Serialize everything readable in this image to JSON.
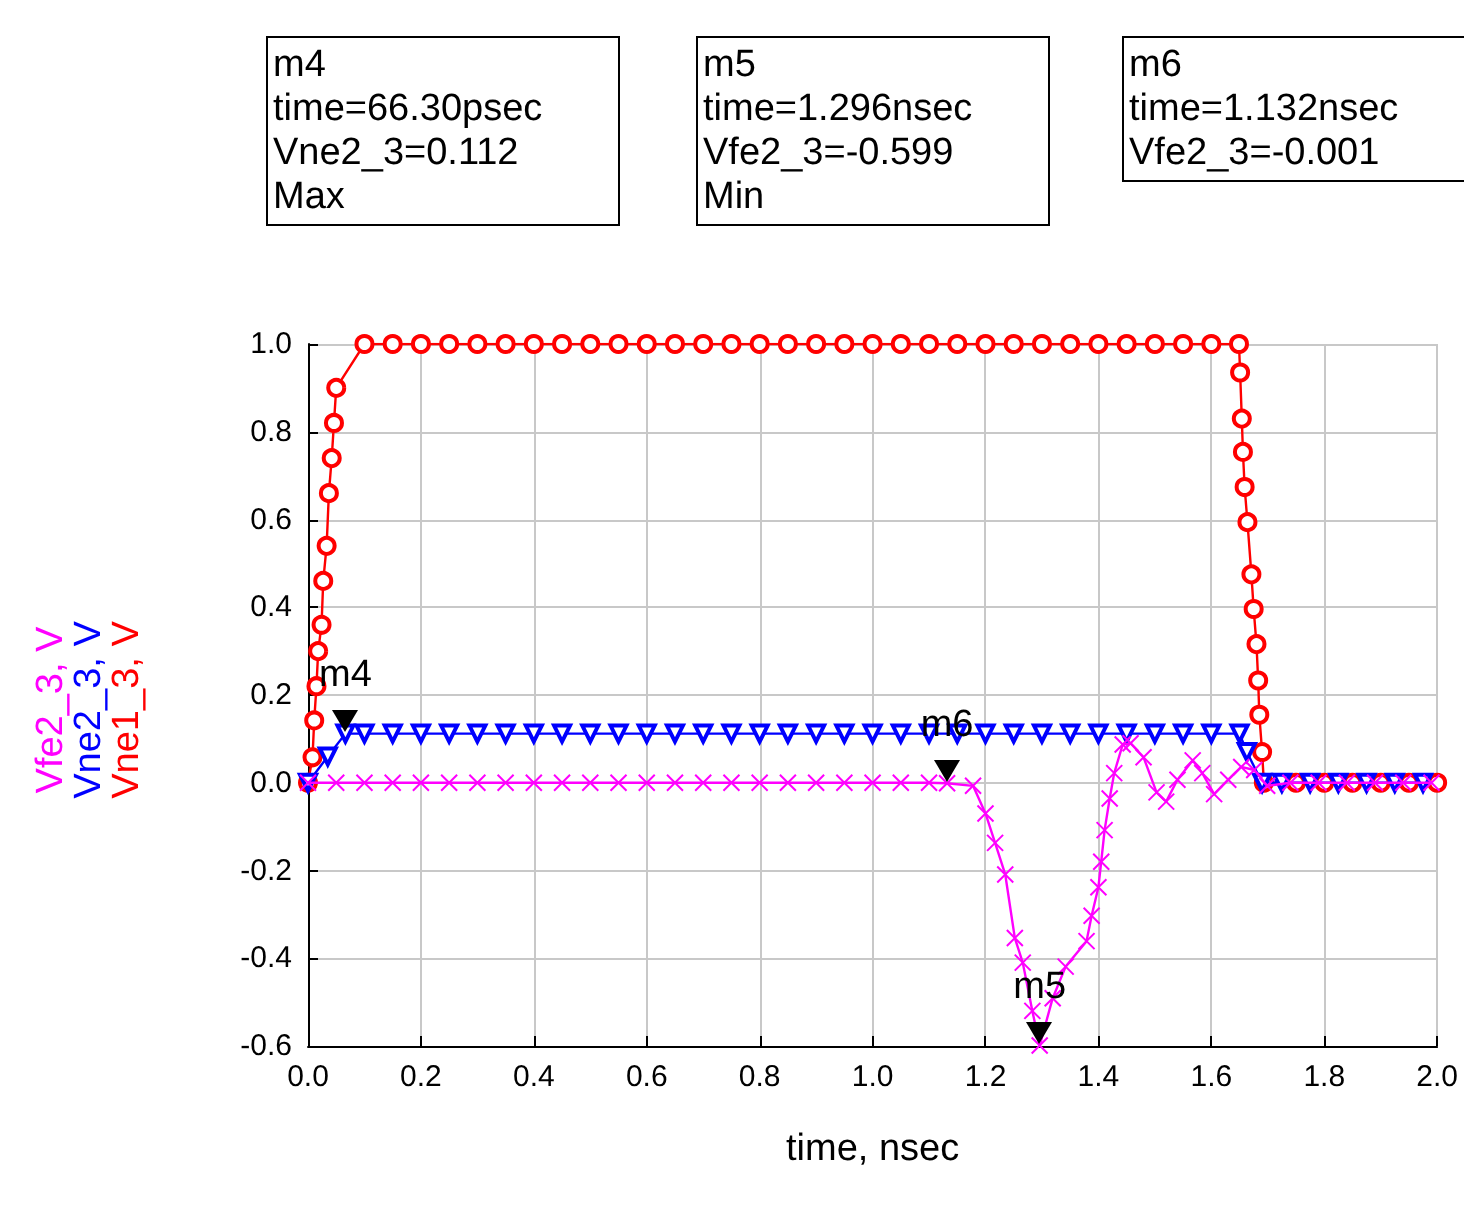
{
  "chart_data": {
    "type": "line",
    "xlabel": "time, nsec",
    "xlim": [
      0,
      2
    ],
    "xticks": [
      {
        "value": 0,
        "label": "0.0"
      },
      {
        "value": 0.2,
        "label": "0.2"
      },
      {
        "value": 0.4,
        "label": "0.4"
      },
      {
        "value": 0.6,
        "label": "0.6"
      },
      {
        "value": 0.8,
        "label": "0.8"
      },
      {
        "value": 1,
        "label": "1.0"
      },
      {
        "value": 1.2,
        "label": "1.2"
      },
      {
        "value": 1.4,
        "label": "1.4"
      },
      {
        "value": 1.6,
        "label": "1.6"
      },
      {
        "value": 1.8,
        "label": "1.8"
      },
      {
        "value": 2,
        "label": "2.0"
      }
    ],
    "ylim": [
      -0.6,
      1
    ],
    "yticks": [
      {
        "value": -0.6,
        "label": "-0.6"
      },
      {
        "value": -0.4,
        "label": "-0.4"
      },
      {
        "value": -0.2,
        "label": "-0.2"
      },
      {
        "value": 0,
        "label": "0.0"
      },
      {
        "value": 0.2,
        "label": "0.2"
      },
      {
        "value": 0.4,
        "label": "0.4"
      },
      {
        "value": 0.6,
        "label": "0.6"
      },
      {
        "value": 0.8,
        "label": "0.8"
      },
      {
        "value": 1,
        "label": "1.0"
      }
    ],
    "grid": true,
    "legend": "left",
    "line_style": "solid",
    "series": [
      {
        "name": "Vne1_3, V",
        "color": "#ff0000",
        "marker": "circle",
        "x": [
          0,
          0.008,
          0.011,
          0.015,
          0.018,
          0.024,
          0.027,
          0.033,
          0.037,
          0.042,
          0.046,
          0.05,
          0.1,
          0.15,
          0.2,
          0.25,
          0.3,
          0.35,
          0.4,
          0.45,
          0.5,
          0.55,
          0.6,
          0.65,
          0.7,
          0.75,
          0.8,
          0.85,
          0.9,
          0.95,
          1,
          1.05,
          1.1,
          1.15,
          1.2,
          1.25,
          1.3,
          1.35,
          1.4,
          1.45,
          1.5,
          1.55,
          1.6,
          1.649,
          1.651,
          1.654,
          1.656,
          1.659,
          1.664,
          1.671,
          1.675,
          1.68,
          1.683,
          1.685,
          1.69,
          1.693,
          1.75,
          1.8,
          1.85,
          1.9,
          1.95,
          2
        ],
        "values": [
          0,
          0.058,
          0.142,
          0.22,
          0.3,
          0.36,
          0.46,
          0.54,
          0.66,
          0.74,
          0.82,
          0.9,
          1,
          1,
          1,
          1,
          1,
          1,
          1,
          1,
          1,
          1,
          1,
          1,
          1,
          1,
          1,
          1,
          1,
          1,
          1,
          1,
          1,
          1,
          1,
          1,
          1,
          1,
          1,
          1,
          1,
          1,
          1,
          1,
          0.935,
          0.83,
          0.754,
          0.674,
          0.594,
          0.475,
          0.396,
          0.316,
          0.233,
          0.155,
          0.07,
          0,
          0,
          0,
          0,
          0,
          0,
          0
        ]
      },
      {
        "name": "Vne2_3, V",
        "color": "#0000ff",
        "marker": "triangle",
        "x": [
          0,
          0.035,
          0.0663,
          0.1,
          0.15,
          0.2,
          0.25,
          0.3,
          0.35,
          0.4,
          0.45,
          0.5,
          0.55,
          0.6,
          0.65,
          0.7,
          0.75,
          0.8,
          0.85,
          0.9,
          0.95,
          1,
          1.05,
          1.1,
          1.15,
          1.2,
          1.25,
          1.3,
          1.35,
          1.4,
          1.45,
          1.5,
          1.55,
          1.6,
          1.65,
          1.663,
          1.69,
          1.725,
          1.775,
          1.825,
          1.875,
          1.925,
          1.975
        ],
        "values": [
          0,
          0.06,
          0.112,
          0.112,
          0.112,
          0.112,
          0.112,
          0.112,
          0.112,
          0.112,
          0.112,
          0.112,
          0.112,
          0.112,
          0.112,
          0.112,
          0.112,
          0.112,
          0.112,
          0.112,
          0.112,
          0.112,
          0.112,
          0.112,
          0.112,
          0.112,
          0.112,
          0.112,
          0.112,
          0.112,
          0.112,
          0.112,
          0.112,
          0.112,
          0.112,
          0.07,
          0,
          0,
          0,
          0,
          0,
          0,
          0
        ]
      },
      {
        "name": "Vfe2_3, V",
        "color": "#ff00ff",
        "marker": "cross",
        "x": [
          0,
          0.05,
          0.1,
          0.15,
          0.2,
          0.25,
          0.3,
          0.35,
          0.4,
          0.45,
          0.5,
          0.55,
          0.6,
          0.65,
          0.7,
          0.75,
          0.8,
          0.85,
          0.9,
          0.95,
          1,
          1.05,
          1.1,
          1.132,
          1.178,
          1.2,
          1.217,
          1.235,
          1.252,
          1.266,
          1.283,
          1.296,
          1.319,
          1.342,
          1.379,
          1.388,
          1.4,
          1.405,
          1.411,
          1.42,
          1.428,
          1.443,
          1.457,
          1.48,
          1.503,
          1.52,
          1.54,
          1.567,
          1.584,
          1.605,
          1.63,
          1.653,
          1.676,
          1.699,
          1.74,
          1.79,
          1.84,
          1.89,
          1.94,
          1.99
        ],
        "values": [
          0,
          0,
          0,
          0,
          0,
          0,
          0,
          0,
          0,
          0,
          0,
          0,
          0,
          0,
          0,
          0,
          0,
          0,
          0,
          0,
          0,
          0,
          0,
          -0.001,
          -0.007,
          -0.07,
          -0.137,
          -0.209,
          -0.354,
          -0.41,
          -0.52,
          -0.599,
          -0.491,
          -0.419,
          -0.361,
          -0.303,
          -0.238,
          -0.18,
          -0.108,
          -0.036,
          0.022,
          0.087,
          0.09,
          0.058,
          -0.022,
          -0.043,
          0.007,
          0.051,
          0.022,
          -0.026,
          0.007,
          0.036,
          0.029,
          -0.007,
          0,
          0,
          0,
          0,
          0,
          0
        ]
      }
    ],
    "annotations": [
      "m4\ntime=66.30psec\nVne2_3=0.112\nMax",
      "m5\ntime=1.296nsec\nVfe2_3=-0.599\nMin",
      "m6\ntime=1.132nsec\nVfe2_3=-0.001",
      {
        "text": "m4",
        "x": 0.0663,
        "y": 0.112
      },
      {
        "text": "m5",
        "x": 1.296,
        "y": -0.599
      },
      {
        "text": "m6",
        "x": 1.132,
        "y": -0.001
      }
    ]
  }
}
